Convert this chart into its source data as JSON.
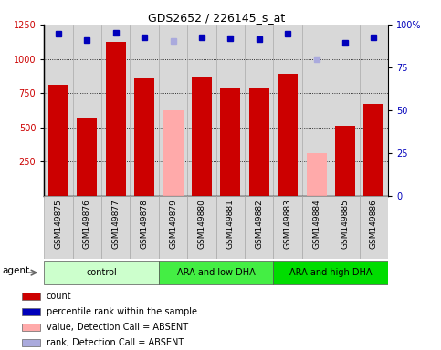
{
  "title": "GDS2652 / 226145_s_at",
  "samples": [
    "GSM149875",
    "GSM149876",
    "GSM149877",
    "GSM149878",
    "GSM149879",
    "GSM149880",
    "GSM149881",
    "GSM149882",
    "GSM149883",
    "GSM149884",
    "GSM149885",
    "GSM149886"
  ],
  "bar_values": [
    810,
    565,
    1120,
    855,
    625,
    865,
    790,
    785,
    890,
    310,
    510,
    670
  ],
  "bar_colors": [
    "#cc0000",
    "#cc0000",
    "#cc0000",
    "#cc0000",
    "#ffaaaa",
    "#cc0000",
    "#cc0000",
    "#cc0000",
    "#cc0000",
    "#ffaaaa",
    "#cc0000",
    "#cc0000"
  ],
  "dot_values": [
    1185,
    1135,
    1190,
    1155,
    1130,
    1155,
    1150,
    1145,
    1185,
    995,
    1115,
    1155
  ],
  "dot_colors": [
    "#0000bb",
    "#0000bb",
    "#0000bb",
    "#0000bb",
    "#aaaadd",
    "#0000bb",
    "#0000bb",
    "#0000bb",
    "#0000bb",
    "#aaaadd",
    "#0000bb",
    "#0000bb"
  ],
  "groups": [
    {
      "label": "control",
      "start": 0,
      "end": 3,
      "color": "#ccffcc"
    },
    {
      "label": "ARA and low DHA",
      "start": 4,
      "end": 7,
      "color": "#44ee44"
    },
    {
      "label": "ARA and high DHA",
      "start": 8,
      "end": 11,
      "color": "#00dd00"
    }
  ],
  "ylim_left": [
    0,
    1250
  ],
  "ylim_right": [
    0,
    100
  ],
  "yticks_left": [
    250,
    500,
    750,
    1000,
    1250
  ],
  "yticks_right": [
    0,
    25,
    50,
    75,
    100
  ],
  "ytick_right_labels": [
    "0",
    "25",
    "50",
    "75",
    "100%"
  ],
  "legend_items": [
    {
      "color": "#cc0000",
      "label": "count"
    },
    {
      "color": "#0000bb",
      "label": "percentile rank within the sample"
    },
    {
      "color": "#ffaaaa",
      "label": "value, Detection Call = ABSENT"
    },
    {
      "color": "#aaaadd",
      "label": "rank, Detection Call = ABSENT"
    }
  ],
  "background_color": "#ffffff",
  "plot_bg_color": "#d8d8d8",
  "agent_label": "agent"
}
